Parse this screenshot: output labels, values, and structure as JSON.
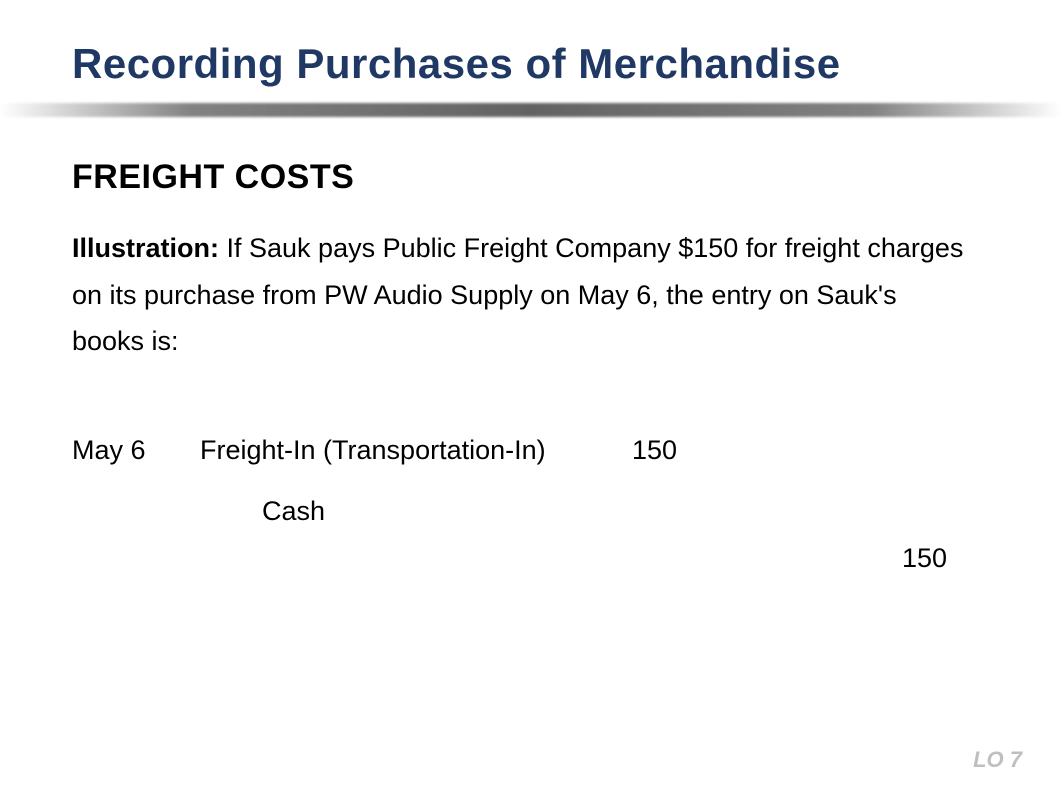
{
  "title": "Recording Purchases of Merchandise",
  "title_color": "#203864",
  "subtitle": "FREIGHT COSTS",
  "illustration_label": "Illustration:",
  "illustration_text": "  If Sauk pays Public Freight Company $150 for freight charges on its purchase from PW Audio Supply on May 6, the entry on Sauk's books is:",
  "journal_entry": {
    "date": "May 6",
    "debit_account": "Freight-In (Transportation-In)",
    "debit_amount": "150",
    "credit_account": "Cash",
    "credit_amount": "150"
  },
  "footer": "LO 7",
  "colors": {
    "title": "#203864",
    "text": "#000000",
    "footer": "#bfbfbf",
    "divider_mid": "#707070",
    "background": "#ffffff"
  },
  "fontsizes": {
    "title": 42,
    "subtitle": 34,
    "body": 27,
    "footer": 22
  }
}
